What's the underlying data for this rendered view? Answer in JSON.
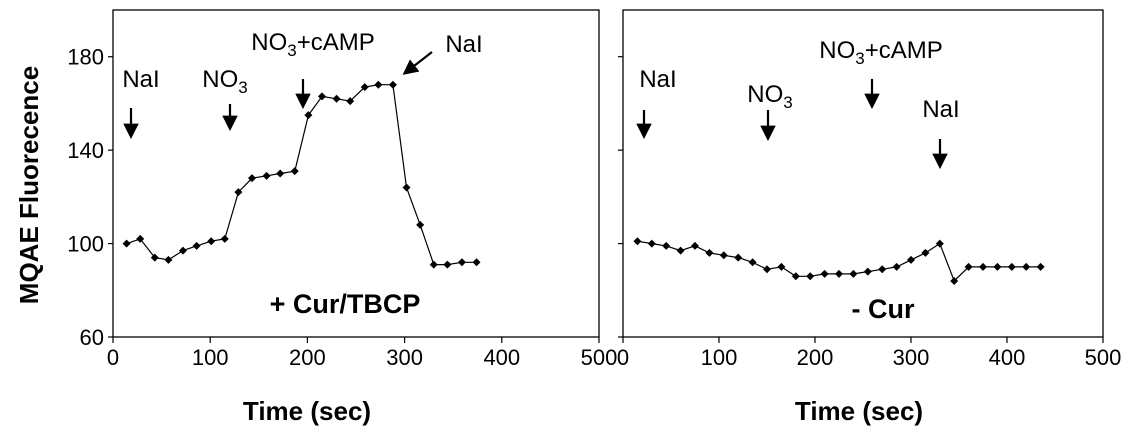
{
  "figure": {
    "ylabel": "MQAE Fluorecence",
    "xlabel": "Time (sec)"
  },
  "chart_data": [
    {
      "type": "line",
      "panel_label": "+ Cur/TBCP",
      "xlabel": "Time (sec)",
      "ylabel": "MQAE Fluorecence",
      "xlim": [
        0,
        500
      ],
      "ylim": [
        60,
        200
      ],
      "xticks": [
        0,
        100,
        200,
        300,
        400,
        500
      ],
      "yticks": [
        60,
        100,
        140,
        180
      ],
      "grid": false,
      "marker": "diamond",
      "series": [
        {
          "x": [
            14,
            28,
            43,
            57,
            72,
            86,
            101,
            115,
            129,
            143,
            158,
            172,
            187,
            201,
            215,
            230,
            244,
            259,
            273,
            288,
            302,
            316,
            330,
            344,
            359,
            374
          ],
          "y": [
            100,
            102,
            94,
            93,
            97,
            99,
            101,
            102,
            122,
            128,
            129,
            130,
            131,
            155,
            163,
            162,
            161,
            167,
            168,
            168,
            124,
            108,
            91,
            91,
            92,
            92
          ]
        }
      ],
      "annotations": [
        {
          "text": "NaI",
          "sub": "",
          "rest": "",
          "x": 14,
          "arrow": "down"
        },
        {
          "text": "NO",
          "sub": "3",
          "rest": "",
          "x": 120,
          "arrow": "down"
        },
        {
          "text": "NO",
          "sub": "3",
          "rest": "+cAMP",
          "x": 200,
          "arrow": "down"
        },
        {
          "text": "NaI",
          "sub": "",
          "rest": "",
          "x": 305,
          "arrow": "diagonal"
        }
      ]
    },
    {
      "type": "line",
      "panel_label": "- Cur",
      "xlabel": "Time (sec)",
      "ylabel": "",
      "xlim": [
        0,
        500
      ],
      "ylim": [
        60,
        200
      ],
      "xticks": [
        0,
        100,
        200,
        300,
        400,
        500
      ],
      "yticks": [
        60,
        100,
        140,
        180
      ],
      "grid": false,
      "marker": "diamond",
      "series": [
        {
          "x": [
            15,
            30,
            45,
            60,
            75,
            90,
            105,
            120,
            135,
            150,
            165,
            180,
            195,
            210,
            225,
            240,
            255,
            270,
            285,
            300,
            315,
            330,
            345,
            360,
            375,
            390,
            405,
            420,
            435
          ],
          "y": [
            101,
            100,
            99,
            97,
            99,
            96,
            95,
            94,
            92,
            89,
            90,
            86,
            86,
            87,
            87,
            87,
            88,
            89,
            90,
            93,
            96,
            100,
            84,
            90,
            90,
            90,
            90,
            90,
            90
          ]
        }
      ],
      "annotations": [
        {
          "text": "NaI",
          "sub": "",
          "rest": "",
          "x": 15,
          "arrow": "down"
        },
        {
          "text": "NO",
          "sub": "3",
          "rest": "",
          "x": 150,
          "arrow": "down"
        },
        {
          "text": "NO",
          "sub": "3",
          "rest": "+cAMP",
          "x": 258,
          "arrow": "down"
        },
        {
          "text": "NaI",
          "sub": "",
          "rest": "",
          "x": 328,
          "arrow": "down"
        }
      ]
    }
  ]
}
